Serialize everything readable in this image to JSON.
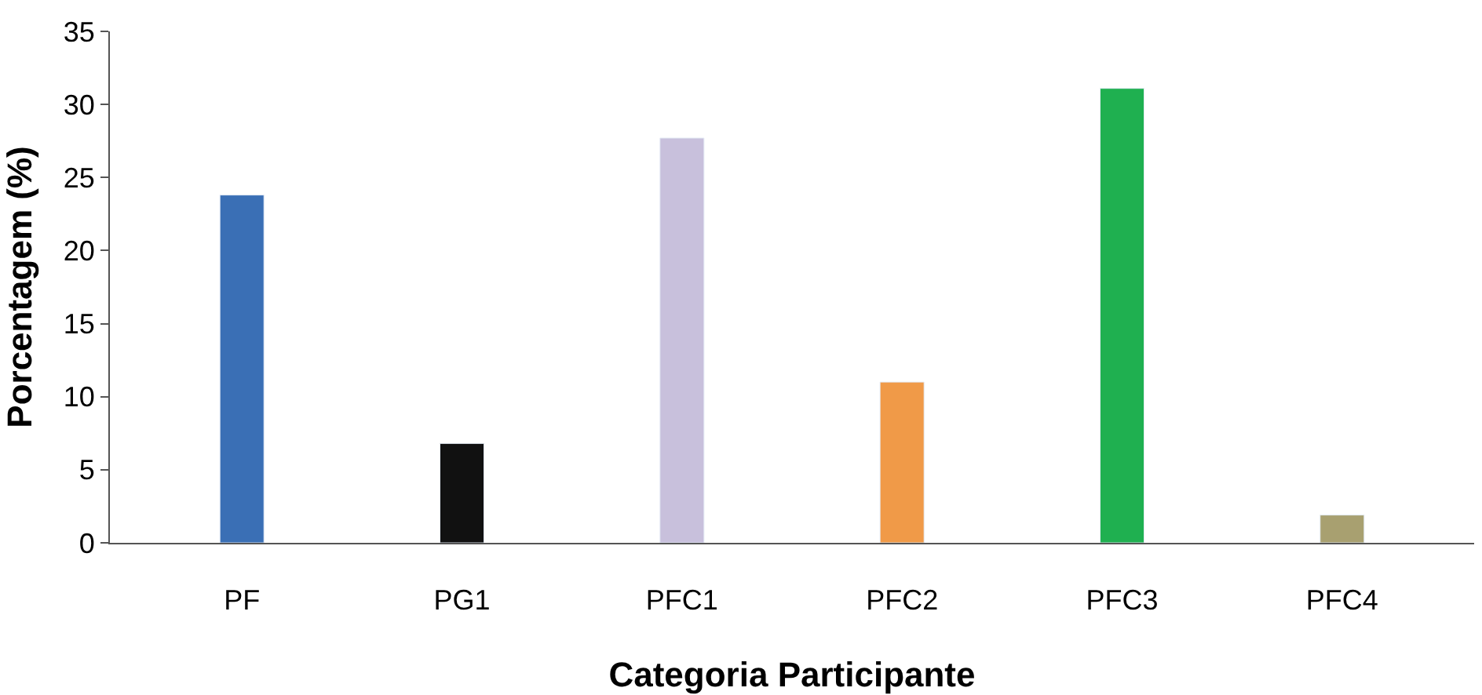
{
  "chart_data": {
    "type": "bar",
    "xlabel": "Categoria Participante",
    "ylabel": "Porcentagem (%)",
    "categories": [
      "PF",
      "PG1",
      "PFC1",
      "PFC2",
      "PFC3",
      "PFC4"
    ],
    "values": [
      23.8,
      6.8,
      27.7,
      11,
      31.1,
      1.9
    ],
    "colors": [
      "#3a6fb5",
      "#111111",
      "#c8c0dc",
      "#f09a48",
      "#1fb050",
      "#a8a070"
    ],
    "ylim": [
      0,
      35
    ],
    "yticks": [
      0,
      5,
      10,
      15,
      20,
      25,
      30,
      35
    ]
  }
}
